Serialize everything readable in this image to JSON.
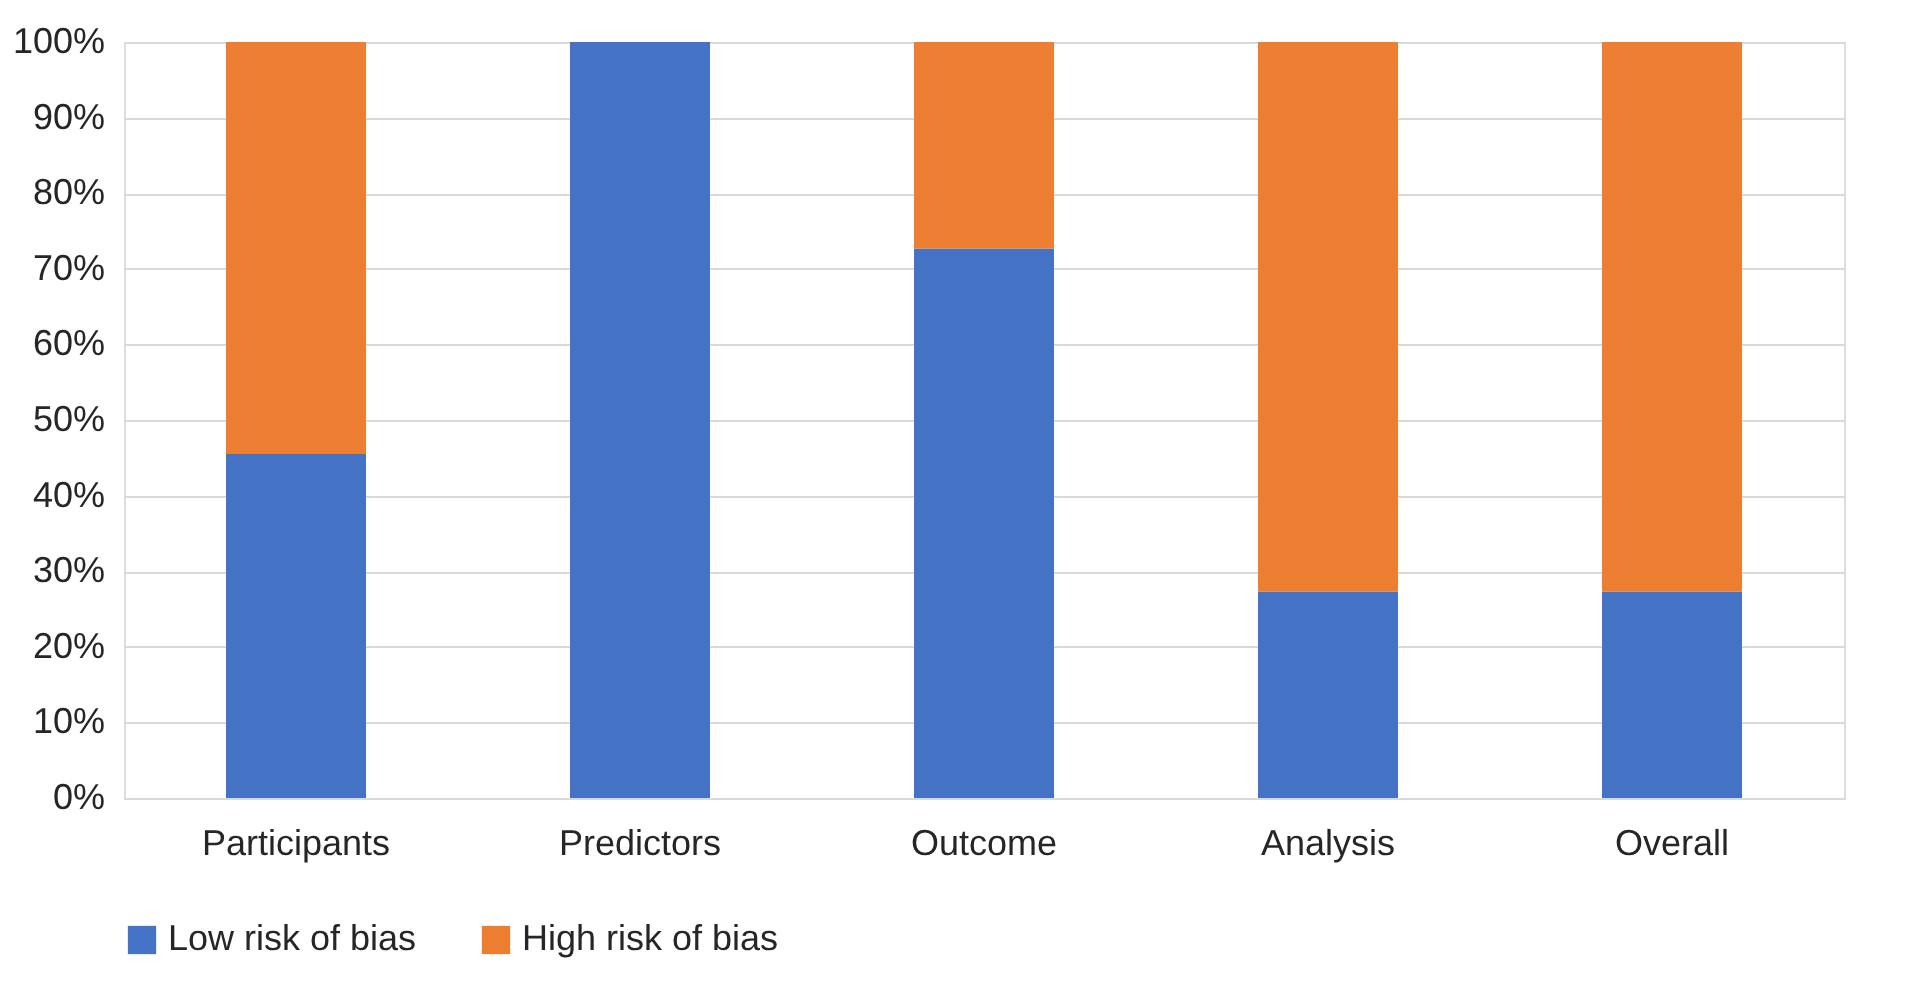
{
  "chart_data": {
    "type": "bar",
    "stacked": true,
    "categories": [
      "Participants",
      "Predictors",
      "Outcome",
      "Analysis",
      "Overall"
    ],
    "series": [
      {
        "name": "Low risk of bias",
        "color": "#4472c4",
        "values": [
          45.5,
          100,
          72.7,
          27.3,
          27.3
        ]
      },
      {
        "name": "High risk of bias",
        "color": "#ed7d31",
        "values": [
          54.5,
          0,
          27.3,
          72.7,
          72.7
        ]
      }
    ],
    "ylim": [
      0,
      100
    ],
    "yticks": [
      {
        "value": 0,
        "label": "0%"
      },
      {
        "value": 10,
        "label": "10%"
      },
      {
        "value": 20,
        "label": "20%"
      },
      {
        "value": 30,
        "label": "30%"
      },
      {
        "value": 40,
        "label": "40%"
      },
      {
        "value": 50,
        "label": "50%"
      },
      {
        "value": 60,
        "label": "60%"
      },
      {
        "value": 70,
        "label": "70%"
      },
      {
        "value": 80,
        "label": "80%"
      },
      {
        "value": 90,
        "label": "90%"
      },
      {
        "value": 100,
        "label": "100%"
      }
    ],
    "grid": "y",
    "legend": "bottom"
  }
}
